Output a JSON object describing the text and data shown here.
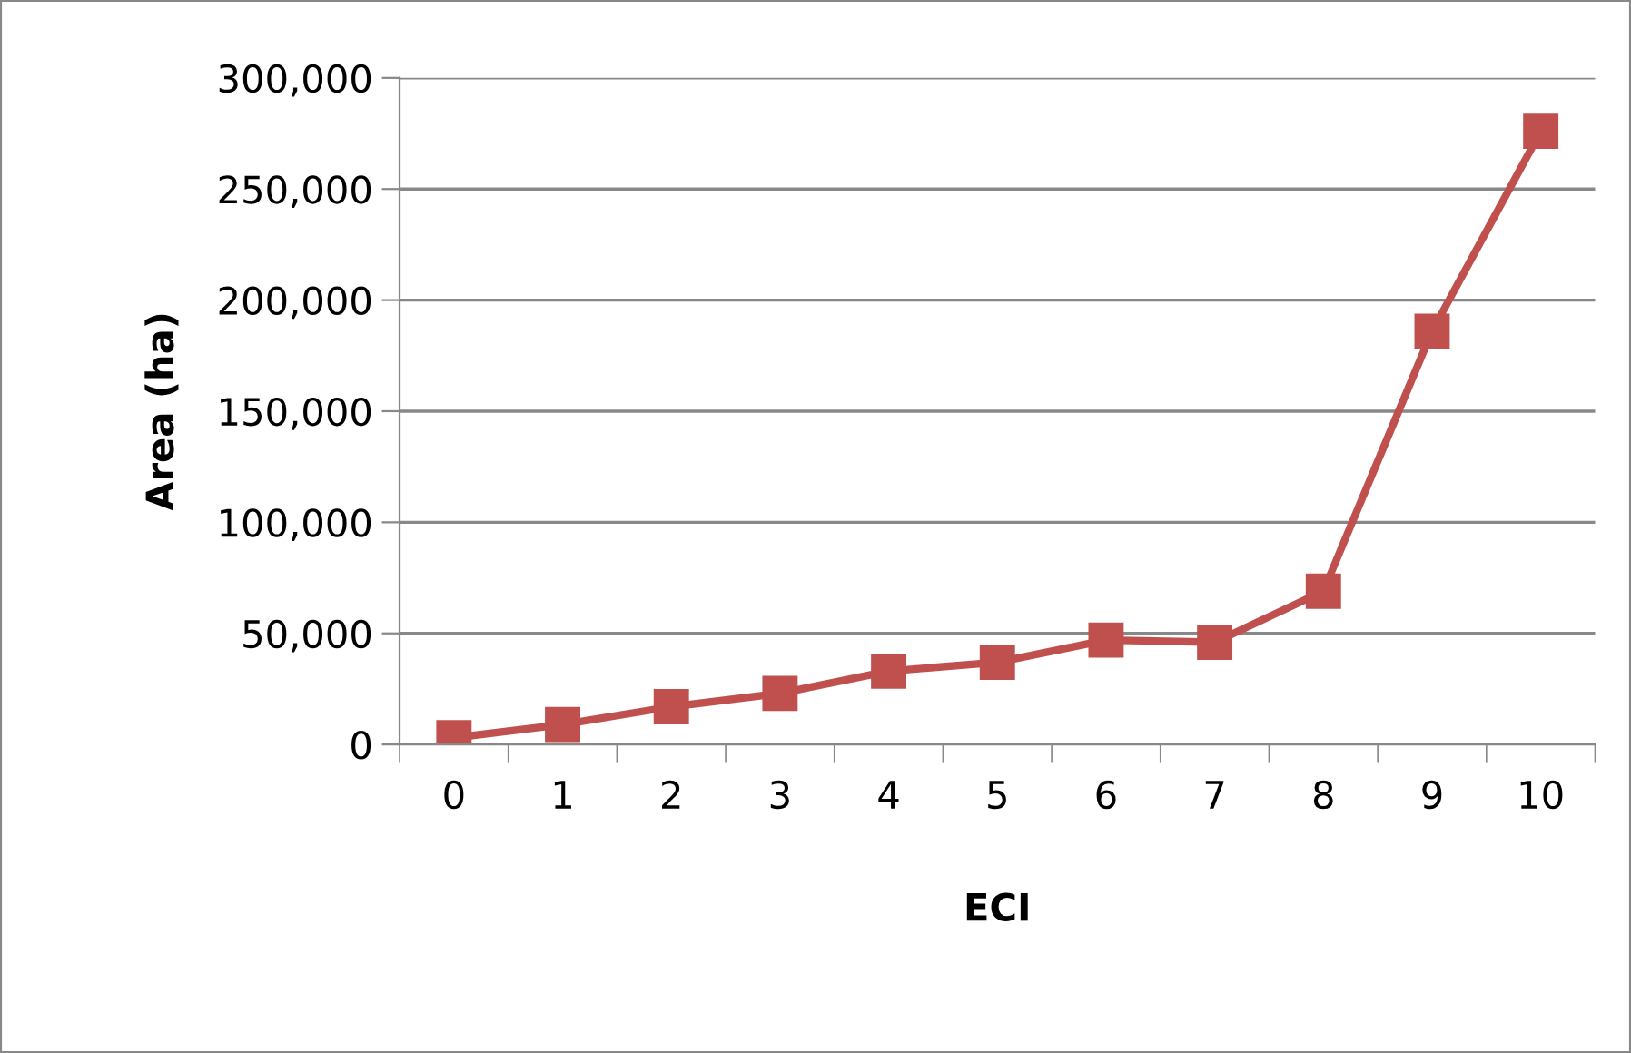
{
  "chart_data": {
    "type": "line",
    "xlabel": "ECI",
    "ylabel": "Area (ha)",
    "categories": [
      "0",
      "1",
      "2",
      "3",
      "4",
      "5",
      "6",
      "7",
      "8",
      "9",
      "10"
    ],
    "series": [
      {
        "color": "#c0504d",
        "values": [
          3000,
          9000,
          17000,
          23000,
          33000,
          37000,
          47000,
          46000,
          69000,
          186000,
          276000
        ]
      }
    ],
    "ylim": [
      0,
      300000
    ],
    "yticks": [
      {
        "value": 0,
        "label": "0"
      },
      {
        "value": 50000,
        "label": "50,000"
      },
      {
        "value": 100000,
        "label": "100,000"
      },
      {
        "value": 150000,
        "label": "150,000"
      },
      {
        "value": 200000,
        "label": "200,000"
      },
      {
        "value": 250000,
        "label": "250,000"
      },
      {
        "value": 300000,
        "label": "300,000"
      }
    ],
    "grid": "y",
    "marker": "square",
    "line_style": "solid"
  }
}
